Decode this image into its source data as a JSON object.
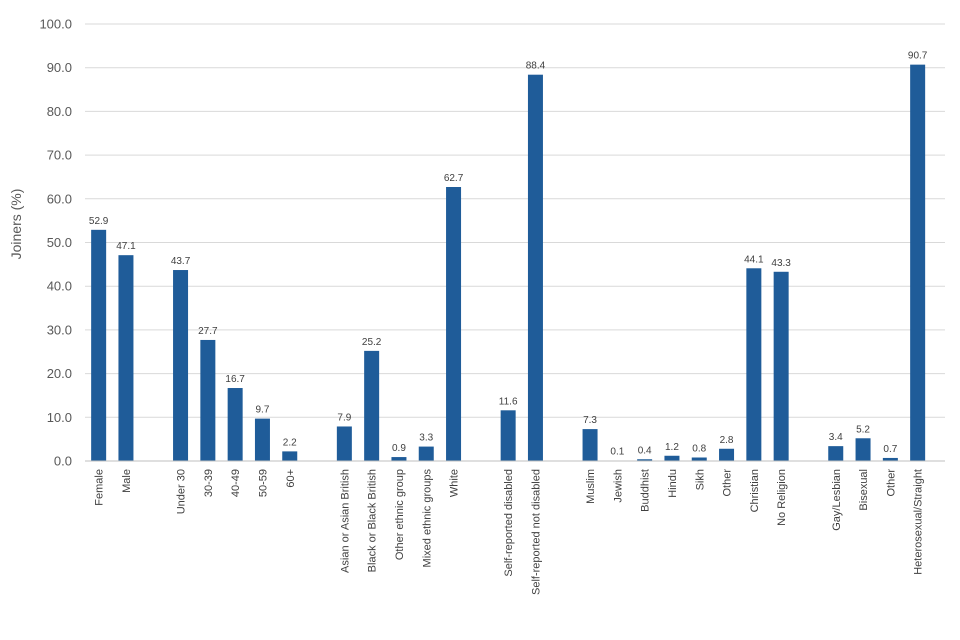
{
  "chart_data": {
    "type": "bar",
    "title": "",
    "xlabel": "",
    "ylabel": "Joiners (%)",
    "ylim": [
      0,
      100
    ],
    "yticks": [
      "0.0",
      "10.0",
      "20.0",
      "30.0",
      "40.0",
      "50.0",
      "60.0",
      "70.0",
      "80.0",
      "90.0",
      "100.0"
    ],
    "grid": true,
    "legend": "none",
    "bar_color": "#1F5C99",
    "groups": [
      {
        "categories": [
          "Female",
          "Male"
        ],
        "values": [
          52.9,
          47.1
        ]
      },
      {
        "categories": [
          "Under 30",
          "30-39",
          "40-49",
          "50-59",
          "60+"
        ],
        "values": [
          43.7,
          27.7,
          16.7,
          9.7,
          2.2
        ]
      },
      {
        "categories": [
          "Asian or Asian British",
          "Black or Black British",
          "Other ethnic group",
          "Mixed ethnic groups",
          "White"
        ],
        "values": [
          7.9,
          25.2,
          0.9,
          3.3,
          62.7
        ]
      },
      {
        "categories": [
          "Self-reported disabled",
          "Self-reported not disabled"
        ],
        "values": [
          11.6,
          88.4
        ]
      },
      {
        "categories": [
          "Muslim",
          "Jewish",
          "Buddhist",
          "Hindu",
          "Sikh",
          "Other",
          "Christian",
          "No Religion"
        ],
        "values": [
          7.3,
          0.1,
          0.4,
          1.2,
          0.8,
          2.8,
          44.1,
          43.3
        ]
      },
      {
        "categories": [
          "Gay/Lesbian",
          "Bisexual",
          "Other",
          "Heterosexual/Straight"
        ],
        "values": [
          3.4,
          5.2,
          0.7,
          90.7
        ]
      }
    ]
  }
}
